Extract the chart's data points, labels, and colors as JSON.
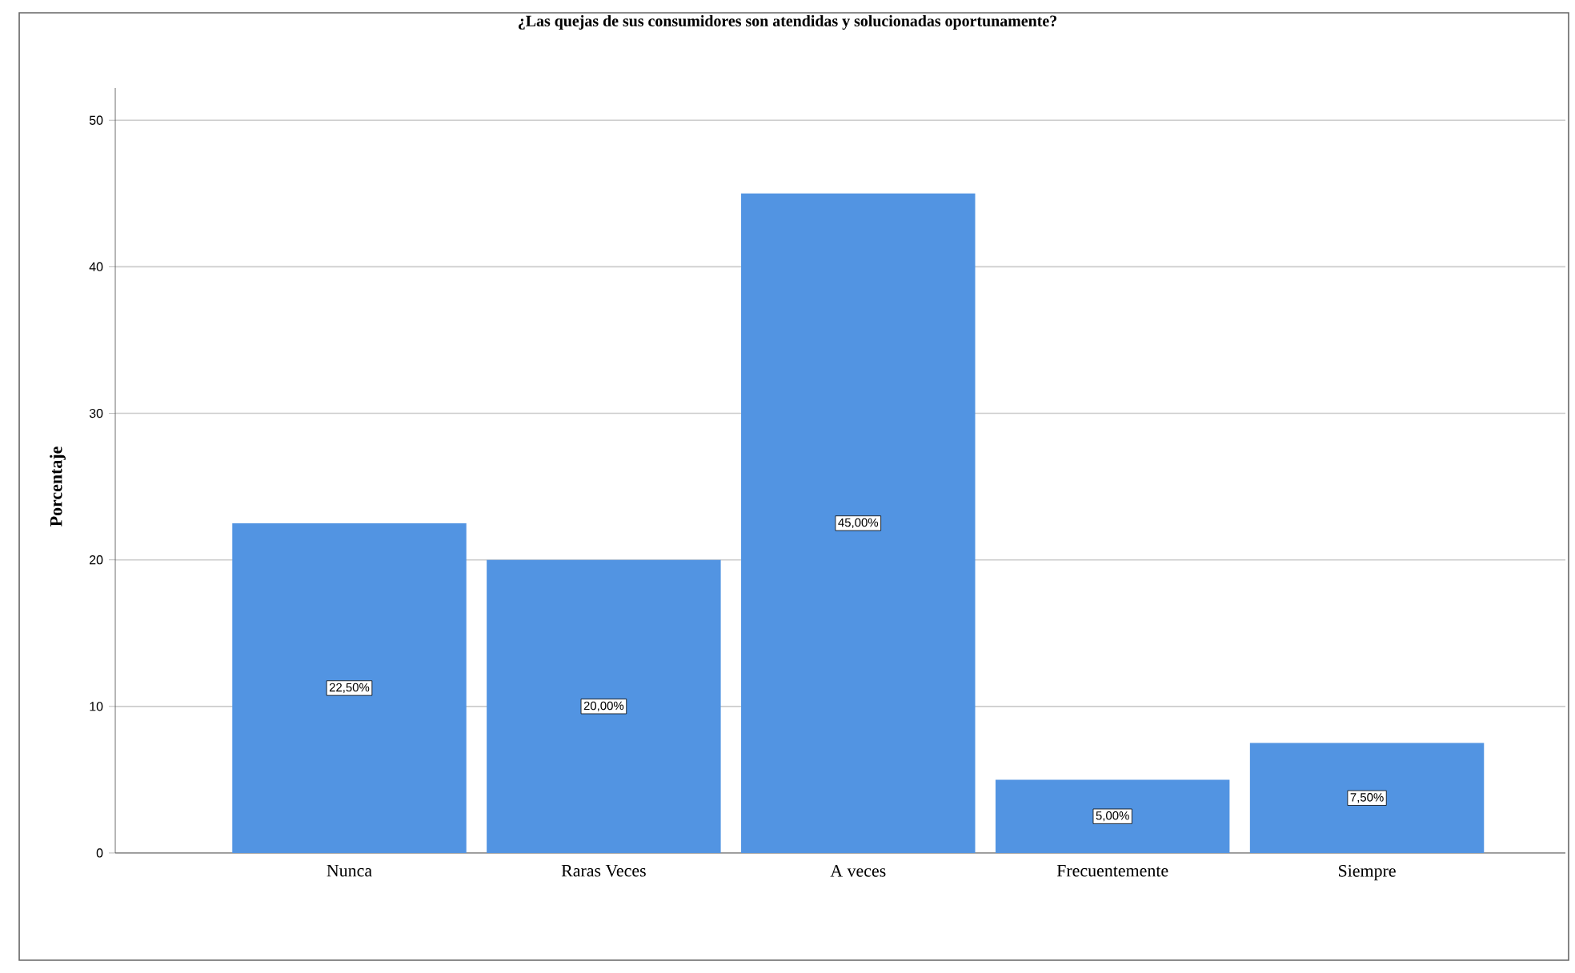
{
  "chart_data": {
    "type": "bar",
    "title": "¿Las quejas de sus consumidores son atendidas y solucionadas oportunamente?",
    "ylabel": "Porcentaje",
    "categories": [
      "Nunca",
      "Raras Veces",
      "A veces",
      "Frecuentemente",
      "Siempre"
    ],
    "values": [
      22.5,
      20,
      45,
      5,
      7.5
    ],
    "value_labels": [
      "22,50%",
      "20,00%",
      "45,00%",
      "5,00%",
      "7,50%"
    ],
    "color": "#5294e2",
    "ylim": [
      0,
      52.2
    ],
    "yticks": [
      0,
      10,
      20,
      30,
      40,
      50
    ],
    "grid": "y"
  }
}
